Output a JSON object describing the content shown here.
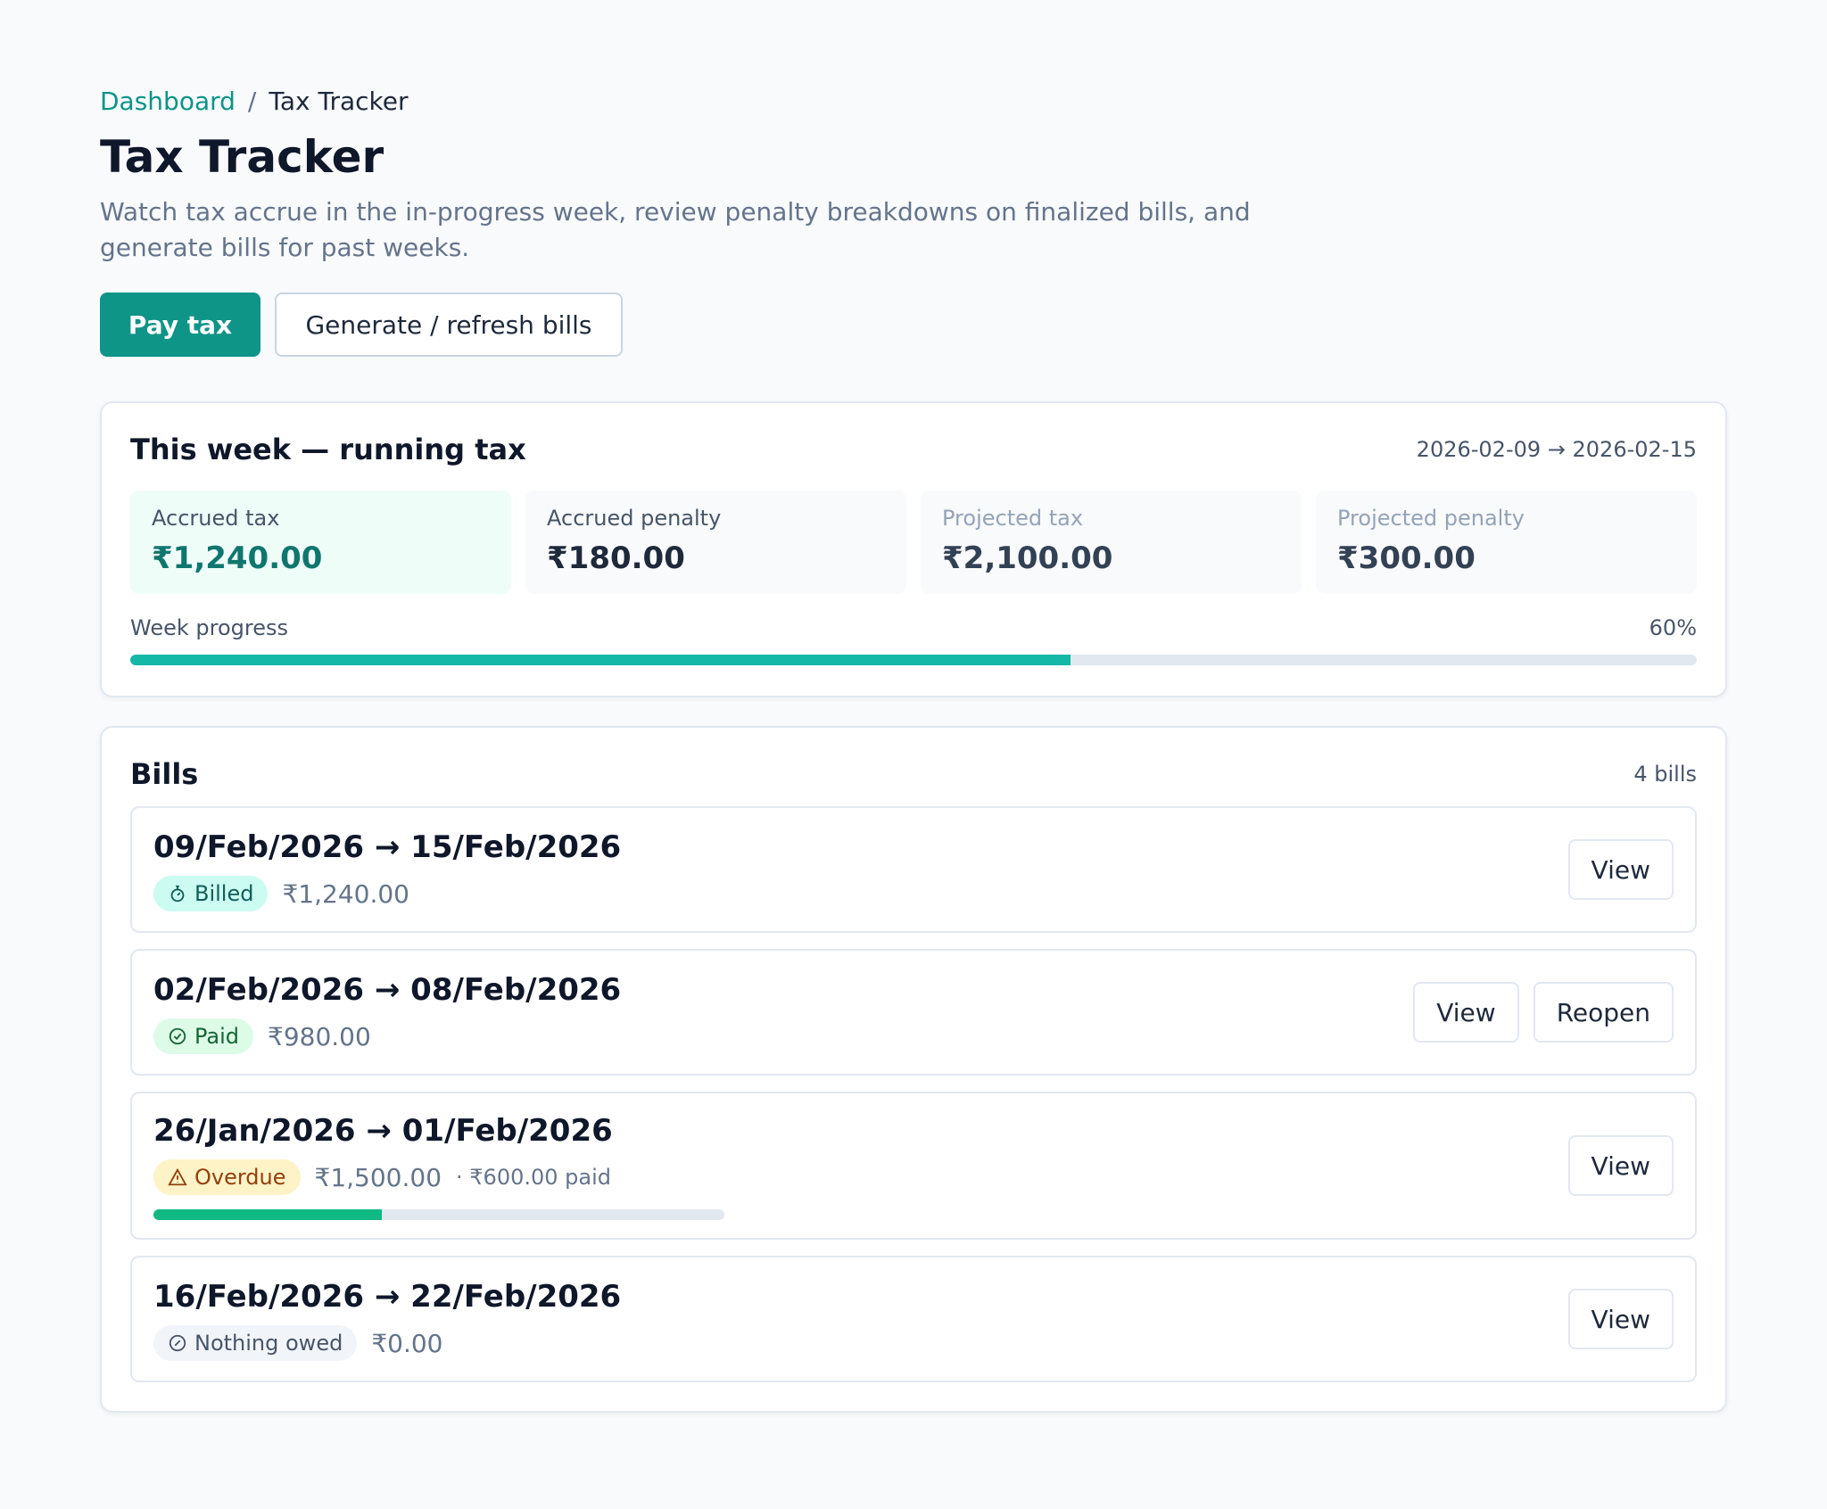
{
  "breadcrumb": {
    "root": "Dashboard",
    "separator": "/",
    "current": "Tax Tracker"
  },
  "page": {
    "title": "Tax Tracker",
    "subtitle": "Watch tax accrue in the in-progress week, review penalty breakdowns on finalized bills, and generate bills for past weeks."
  },
  "actions": {
    "pay": "Pay tax",
    "generate": "Generate / refresh bills"
  },
  "week": {
    "title": "This week — running tax",
    "range": "2026-02-09 → 2026-02-15",
    "metrics": [
      {
        "label": "Accrued tax",
        "value": "₹1,240.00"
      },
      {
        "label": "Accrued penalty",
        "value": "₹180.00"
      },
      {
        "label": "Projected tax",
        "value": "₹2,100.00"
      },
      {
        "label": "Projected penalty",
        "value": "₹300.00"
      }
    ],
    "progress_label": "Week progress",
    "progress_text": "60%",
    "progress_value": 0.6
  },
  "bills": {
    "title": "Bills",
    "count": "4 bills",
    "items": [
      {
        "range": "09/Feb/2026 → 15/Feb/2026",
        "status": "Billed",
        "amount": "₹1,240.00",
        "view": "View"
      },
      {
        "range": "02/Feb/2026 → 08/Feb/2026",
        "status": "Paid",
        "amount": "₹980.00",
        "view": "View",
        "reopen": "Reopen"
      },
      {
        "range": "26/Jan/2026 → 01/Feb/2026",
        "status": "Overdue",
        "amount": "₹1,500.00",
        "paid_note": "· ₹600.00 paid",
        "paid_fraction": 0.4,
        "view": "View"
      },
      {
        "range": "16/Feb/2026 → 22/Feb/2026",
        "status": "Nothing owed",
        "amount": "₹0.00",
        "view": "View"
      }
    ]
  },
  "colors": {
    "accent": "#0f9488",
    "progress": "#14b8a6",
    "overdue_progress": "#10b981"
  }
}
